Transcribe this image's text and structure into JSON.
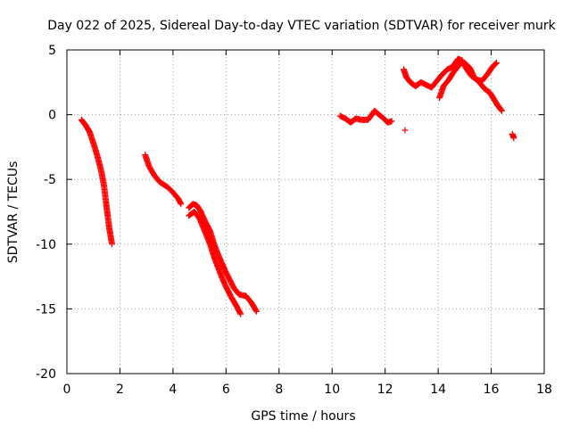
{
  "chart_data": {
    "type": "scatter",
    "title": "Day 022 of 2025, Sidereal Day-to-day VTEC variation (SDTVAR) for receiver murk",
    "xlabel": "GPS time / hours",
    "ylabel": "SDTVAR / TECUs",
    "xlim": [
      0,
      18
    ],
    "ylim": [
      -20,
      5
    ],
    "xticks": [
      0,
      2,
      4,
      6,
      8,
      10,
      12,
      14,
      16,
      18
    ],
    "yticks": [
      -20,
      -15,
      -10,
      -5,
      0,
      5
    ],
    "grid": true,
    "marker": "+",
    "color": "#ff0000",
    "segments": [
      {
        "name": "segment-1",
        "points": [
          [
            0.55,
            -0.4
          ],
          [
            0.7,
            -0.8
          ],
          [
            0.85,
            -1.3
          ],
          [
            1.0,
            -2.2
          ],
          [
            1.15,
            -3.2
          ],
          [
            1.3,
            -4.4
          ],
          [
            1.4,
            -5.5
          ],
          [
            1.5,
            -7.2
          ],
          [
            1.6,
            -8.8
          ],
          [
            1.7,
            -10.0
          ]
        ]
      },
      {
        "name": "segment-2",
        "points": [
          [
            2.95,
            -3.1
          ],
          [
            3.1,
            -4.0
          ],
          [
            3.3,
            -4.7
          ],
          [
            3.5,
            -5.2
          ],
          [
            3.8,
            -5.6
          ],
          [
            4.0,
            -6.0
          ],
          [
            4.2,
            -6.5
          ],
          [
            4.3,
            -6.9
          ]
        ]
      },
      {
        "name": "segment-3",
        "points": [
          [
            4.6,
            -7.2
          ],
          [
            4.75,
            -6.9
          ],
          [
            4.9,
            -7.0
          ],
          [
            5.05,
            -7.5
          ],
          [
            5.2,
            -8.2
          ],
          [
            5.4,
            -9.0
          ],
          [
            5.55,
            -10.0
          ],
          [
            5.7,
            -10.8
          ],
          [
            5.85,
            -11.5
          ],
          [
            6.0,
            -12.2
          ],
          [
            6.15,
            -12.8
          ],
          [
            6.3,
            -13.4
          ],
          [
            6.5,
            -13.9
          ],
          [
            6.75,
            -14.0
          ],
          [
            6.95,
            -14.5
          ],
          [
            7.15,
            -15.2
          ]
        ]
      },
      {
        "name": "segment-4",
        "points": [
          [
            4.6,
            -7.8
          ],
          [
            4.8,
            -7.5
          ],
          [
            5.0,
            -8.0
          ],
          [
            5.2,
            -9.0
          ],
          [
            5.4,
            -10.0
          ],
          [
            5.55,
            -11.0
          ],
          [
            5.7,
            -11.8
          ],
          [
            5.85,
            -12.6
          ],
          [
            6.0,
            -13.3
          ],
          [
            6.2,
            -14.1
          ],
          [
            6.4,
            -14.8
          ],
          [
            6.55,
            -15.4
          ]
        ]
      },
      {
        "name": "segment-5",
        "points": [
          [
            10.3,
            -0.1
          ],
          [
            10.5,
            -0.3
          ],
          [
            10.7,
            -0.6
          ],
          [
            10.9,
            -0.3
          ],
          [
            11.1,
            -0.4
          ],
          [
            11.35,
            -0.4
          ],
          [
            11.5,
            0.0
          ],
          [
            11.6,
            0.3
          ],
          [
            11.95,
            -0.3
          ],
          [
            12.1,
            -0.6
          ],
          [
            12.25,
            -0.5
          ]
        ]
      },
      {
        "name": "segment-6",
        "points": [
          [
            12.7,
            3.5
          ],
          [
            12.8,
            2.9
          ],
          [
            12.95,
            2.5
          ],
          [
            13.15,
            2.2
          ],
          [
            13.35,
            2.5
          ],
          [
            13.55,
            2.3
          ],
          [
            13.75,
            2.1
          ],
          [
            13.95,
            2.6
          ],
          [
            14.15,
            3.1
          ],
          [
            14.35,
            3.5
          ],
          [
            14.55,
            3.7
          ],
          [
            14.75,
            4.3
          ],
          [
            14.9,
            4.2
          ],
          [
            15.05,
            3.6
          ],
          [
            15.25,
            3.0
          ],
          [
            15.45,
            2.7
          ],
          [
            15.65,
            2.6
          ],
          [
            15.85,
            3.1
          ],
          [
            16.05,
            3.7
          ],
          [
            16.2,
            4.0
          ]
        ]
      },
      {
        "name": "segment-7",
        "points": [
          [
            14.05,
            1.3
          ],
          [
            14.2,
            2.2
          ],
          [
            14.4,
            2.7
          ],
          [
            14.55,
            3.2
          ],
          [
            14.7,
            3.6
          ],
          [
            14.85,
            4.0
          ],
          [
            15.0,
            4.0
          ],
          [
            15.2,
            3.6
          ],
          [
            15.35,
            2.9
          ],
          [
            15.55,
            2.5
          ],
          [
            15.75,
            2.0
          ],
          [
            15.95,
            1.7
          ],
          [
            16.1,
            1.2
          ],
          [
            16.25,
            0.7
          ],
          [
            16.4,
            0.3
          ]
        ]
      },
      {
        "name": "segment-8",
        "points": [
          [
            12.75,
            -1.2
          ]
        ]
      },
      {
        "name": "segment-9",
        "points": [
          [
            16.8,
            -1.5
          ],
          [
            16.85,
            -1.8
          ]
        ]
      }
    ]
  }
}
